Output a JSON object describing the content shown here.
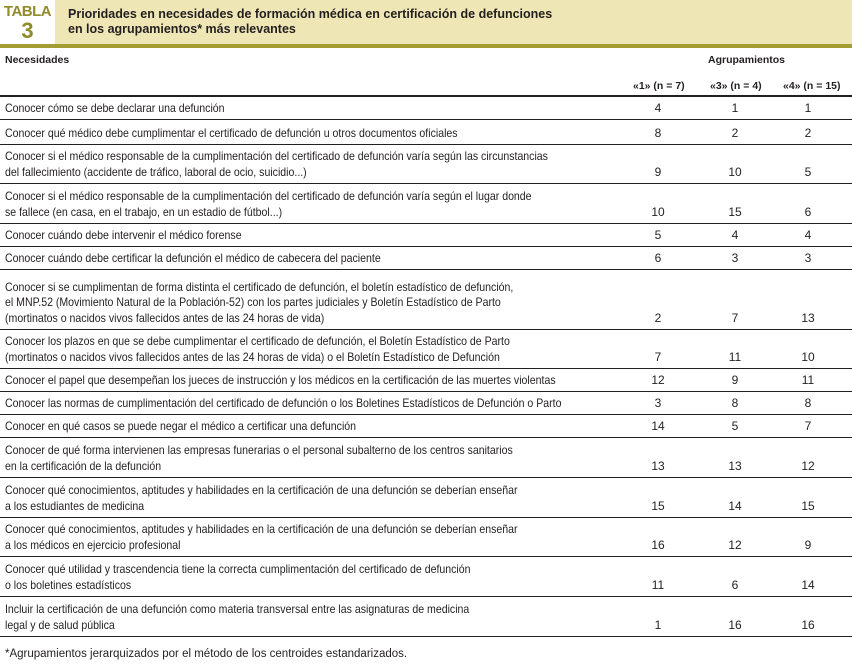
{
  "header": {
    "tag_label": "TABLA",
    "tag_number": "3",
    "title_line1": "Prioridades en necesidades de formación médica en certificación de defunciones",
    "title_line2": "en los agrupamientos* más relevantes"
  },
  "columns": {
    "needs": "Necesidades",
    "group": "Agrupamientos",
    "g1": "«1» (n = 7)",
    "g3": "«3» (n = 4)",
    "g4": "«4» (n = 15)"
  },
  "rows": [
    {
      "text": "Conocer cómo se debe declarar una defunción",
      "g1": "4",
      "g3": "1",
      "g4": "1"
    },
    {
      "text": "Conocer qué médico debe cumplimentar el certificado de defunción u otros documentos oficiales",
      "g1": "8",
      "g3": "2",
      "g4": "2"
    },
    {
      "text": "Conocer si el médico responsable de la cumplimentación del certificado de defunción varía según las circunstancias\ndel fallecimiento (accidente de tráfico, laboral de ocio, suicidio...)",
      "g1": "9",
      "g3": "10",
      "g4": "5"
    },
    {
      "text": "Conocer si el médico responsable de la cumplimentación del certificado de defunción varía según el lugar donde\nse fallece (en casa, en el trabajo, en un estadio de fútbol...)",
      "g1": "10",
      "g3": "15",
      "g4": "6"
    },
    {
      "text": "Conocer cuándo debe intervenir el médico forense",
      "g1": "5",
      "g3": "4",
      "g4": "4"
    },
    {
      "text": "Conocer cuándo debe certificar la defunción el médico de cabecera del paciente",
      "g1": "6",
      "g3": "3",
      "g4": "3"
    },
    {
      "text": "Conocer si se cumplimentan de forma distinta el certificado de defunción, el boletín estadístico de defunción,\nel MNP.52 (Movimiento Natural de la Población-52) con los partes judiciales y Boletín Estadístico de Parto\n(mortinatos o nacidos vivos fallecidos antes de las 24 horas de vida)",
      "g1": "2",
      "g3": "7",
      "g4": "13"
    },
    {
      "text": "Conocer los plazos en que se debe cumplimentar el certificado de defunción, el Boletín Estadístico de Parto\n(mortinatos o nacidos vivos fallecidos antes de las 24 horas de vida) o el Boletín Estadístico de Defunción",
      "g1": "7",
      "g3": "11",
      "g4": "10"
    },
    {
      "text": "Conocer el papel que desempeñan los jueces de instrucción y los médicos en la certificación de las muertes violentas",
      "g1": "12",
      "g3": "9",
      "g4": "11"
    },
    {
      "text": "Conocer las normas de cumplimentación del certificado de defunción o los Boletines Estadísticos de Defunción o Parto",
      "g1": "3",
      "g3": "8",
      "g4": "8"
    },
    {
      "text": "Conocer en qué casos se puede negar el médico a certificar una defunción",
      "g1": "14",
      "g3": "5",
      "g4": "7"
    },
    {
      "text": "Conocer de qué forma intervienen las empresas funerarias o el personal subalterno de los centros sanitarios\nen la certificación de la defunción",
      "g1": "13",
      "g3": "13",
      "g4": "12"
    },
    {
      "text": "Conocer qué conocimientos, aptitudes y habilidades en la certificación de una defunción se deberían enseñar\na los estudiantes de medicina",
      "g1": "15",
      "g3": "14",
      "g4": "15"
    },
    {
      "text": "Conocer qué conocimientos, aptitudes y habilidades en la certificación de una defunción se deberían enseñar\na los médicos en ejercicio profesional",
      "g1": "16",
      "g3": "12",
      "g4": "9"
    },
    {
      "text": "Conocer qué utilidad y trascendencia tiene la correcta cumplimentación del certificado de defunción\no los boletines estadísticos",
      "g1": "11",
      "g3": "6",
      "g4": "14"
    },
    {
      "text": "Incluir la certificación de una defunción como materia transversal entre las asignaturas de medicina\nlegal y de salud pública",
      "g1": "1",
      "g3": "16",
      "g4": "16"
    }
  ],
  "footnote": "*Agrupamientos jerarquizados por el método de los centroides estandarizados."
}
